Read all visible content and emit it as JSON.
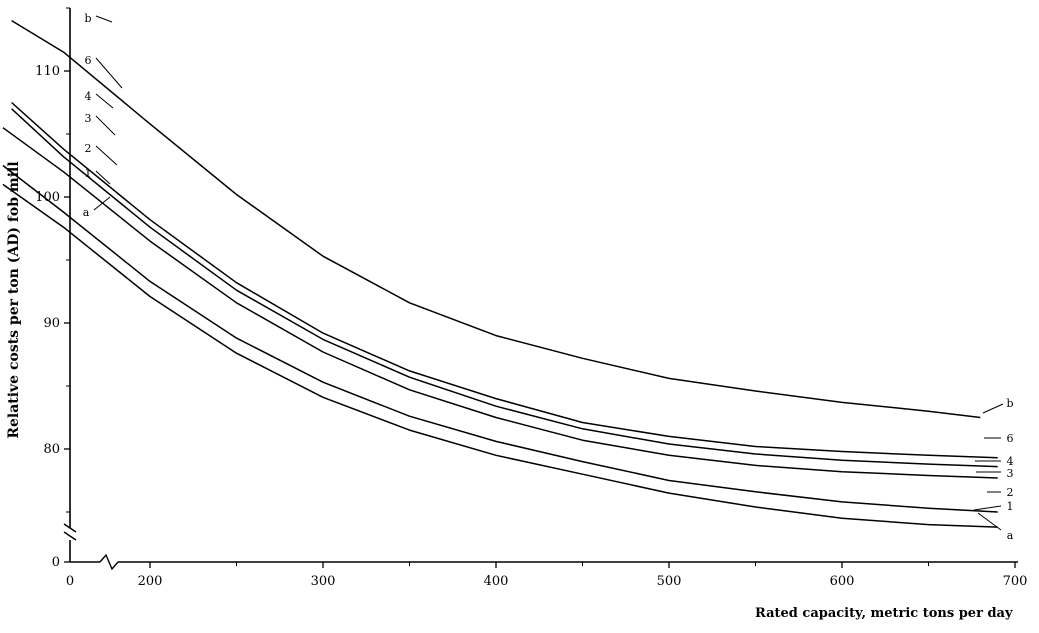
{
  "chart_data": {
    "type": "line",
    "title": "",
    "xlabel": "Rated capacity, metric tons per day",
    "ylabel": "Relative costs per ton (AD) fob mill",
    "xlim": [
      0,
      700
    ],
    "ylim": [
      0,
      115
    ],
    "x_ticks": [
      "0",
      "200",
      "300",
      "400",
      "500",
      "600",
      "700"
    ],
    "y_ticks": [
      "0",
      "80",
      "90",
      "100",
      "110"
    ],
    "axis_breaks": true,
    "grid": false,
    "series": [
      {
        "name": "b",
        "x": [
          120,
          150,
          200,
          250,
          300,
          350,
          400,
          450,
          500,
          550,
          600,
          650,
          680
        ],
        "values": [
          114.0,
          111.5,
          105.8,
          100.2,
          95.3,
          91.6,
          89.0,
          87.2,
          85.6,
          84.6,
          83.7,
          83.0,
          82.5
        ]
      },
      {
        "name": "6",
        "x": [],
        "values": []
      },
      {
        "name": "4",
        "x": [
          120,
          150,
          200,
          250,
          300,
          350,
          400,
          450,
          500,
          550,
          600,
          650,
          690
        ],
        "values": [
          107.5,
          103.8,
          98.2,
          93.2,
          89.2,
          86.2,
          84.0,
          82.1,
          81.0,
          80.2,
          79.8,
          79.5,
          79.3
        ]
      },
      {
        "name": "3",
        "x": [
          120,
          150,
          200,
          250,
          300,
          350,
          400,
          450,
          500,
          550,
          600,
          650,
          690
        ],
        "values": [
          107.0,
          103.2,
          97.6,
          92.6,
          88.7,
          85.7,
          83.4,
          81.6,
          80.4,
          79.6,
          79.1,
          78.8,
          78.6
        ]
      },
      {
        "name": "2",
        "x": [
          115,
          150,
          200,
          250,
          300,
          350,
          400,
          450,
          500,
          550,
          600,
          650,
          690
        ],
        "values": [
          105.5,
          102.0,
          96.5,
          91.6,
          87.7,
          84.7,
          82.5,
          80.7,
          79.5,
          78.7,
          78.2,
          77.9,
          77.7
        ]
      },
      {
        "name": "1",
        "x": [
          115,
          150,
          200,
          250,
          300,
          350,
          400,
          450,
          500,
          550,
          600,
          650,
          690
        ],
        "values": [
          102.5,
          98.8,
          93.3,
          88.8,
          85.3,
          82.6,
          80.6,
          79.0,
          77.5,
          76.6,
          75.8,
          75.3,
          75.0
        ]
      },
      {
        "name": "a",
        "x": [
          115,
          150,
          200,
          250,
          300,
          350,
          400,
          450,
          500,
          550,
          600,
          650,
          690
        ],
        "values": [
          101.0,
          97.6,
          92.1,
          87.6,
          84.1,
          81.5,
          79.5,
          78.0,
          76.5,
          75.4,
          74.5,
          74.0,
          73.8
        ]
      }
    ],
    "series_labels_left": [
      "b",
      "6",
      "4",
      "3",
      "2",
      "1",
      "a"
    ],
    "series_labels_right": [
      "b",
      "6",
      "4",
      "3",
      "2",
      "1",
      "a"
    ]
  }
}
